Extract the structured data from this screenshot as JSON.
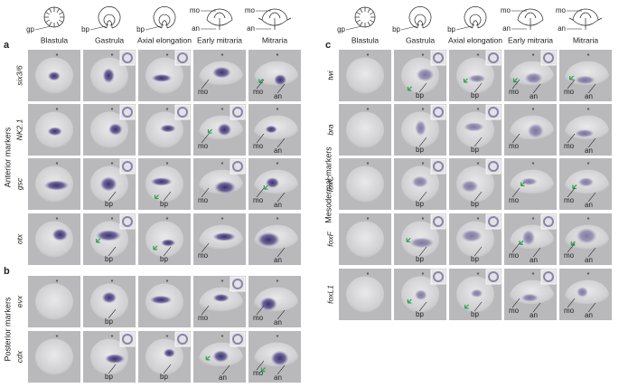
{
  "marker": "*",
  "sides": [
    {
      "stages": [
        "Blastula",
        "Gastrula",
        "Axial elongation",
        "Early mitraria",
        "Mitraria"
      ],
      "schematic_labels": [
        [
          "gp"
        ],
        [
          "bp"
        ],
        [
          "bp"
        ],
        [
          "mo",
          "an"
        ],
        [
          "mo",
          "an"
        ]
      ]
    },
    {
      "stages": [
        "Blastula",
        "Gastrula",
        "Axial elongation",
        "Early mitraria",
        "Mitraria"
      ],
      "schematic_labels": [
        [
          "gp"
        ],
        [
          "bp"
        ],
        [
          "bp"
        ],
        [
          "mo",
          "an"
        ],
        [
          "mo",
          "an"
        ]
      ]
    }
  ],
  "figures": [
    {
      "letter": "a",
      "group": "Anterior markers",
      "rows": [
        {
          "gene": "six3/6",
          "labels": [
            [],
            [],
            [],
            [
              "mo"
            ],
            [
              "mo",
              "an"
            ]
          ]
        },
        {
          "gene": "NK2.1",
          "labels": [
            [],
            [],
            [],
            [
              "mo"
            ],
            [
              "mo",
              "an"
            ]
          ]
        },
        {
          "gene": "gsc",
          "labels": [
            [],
            [
              "bp"
            ],
            [
              "bp"
            ],
            [
              "mo"
            ],
            [
              "mo",
              "an"
            ]
          ]
        },
        {
          "gene": "otx",
          "labels": [
            [],
            [
              "bp"
            ],
            [
              "bp"
            ],
            [
              "mo"
            ],
            [
              "an"
            ]
          ]
        }
      ]
    },
    {
      "letter": "b",
      "group": "Posterior markers",
      "rows": [
        {
          "gene": "evx",
          "labels": [
            [],
            [
              "bp"
            ],
            [],
            [
              "mo"
            ],
            [
              "mo",
              "an"
            ]
          ]
        },
        {
          "gene": "cdx",
          "labels": [
            [],
            [
              "bp"
            ],
            [
              "bp"
            ],
            [
              "an"
            ],
            [
              "mo",
              "an"
            ]
          ]
        }
      ]
    },
    {
      "letter": "c",
      "group": "Mesodermal markers",
      "rows": [
        {
          "gene": "twi",
          "labels": [
            [],
            [
              "bp"
            ],
            [
              "bp"
            ],
            [
              "mo",
              "an"
            ],
            [
              "mo",
              "an"
            ]
          ]
        },
        {
          "gene": "bra",
          "labels": [
            [],
            [
              "bp"
            ],
            [
              "bp"
            ],
            [
              "mo"
            ],
            [
              "mo",
              "an"
            ]
          ]
        },
        {
          "gene": "foxC",
          "labels": [
            [],
            [
              "bp"
            ],
            [
              "bp"
            ],
            [
              "mo"
            ],
            [
              "mo",
              "an"
            ]
          ]
        },
        {
          "gene": "foxF",
          "labels": [
            [],
            [
              "bp"
            ],
            [
              "bp"
            ],
            [
              "mo",
              "an"
            ],
            [
              "mo",
              "an"
            ]
          ]
        },
        {
          "gene": "foxL1",
          "labels": [
            [],
            [
              "bp"
            ],
            [
              "bp"
            ],
            [
              "mo",
              "an"
            ],
            [
              "mo",
              "an"
            ]
          ]
        }
      ]
    }
  ]
}
